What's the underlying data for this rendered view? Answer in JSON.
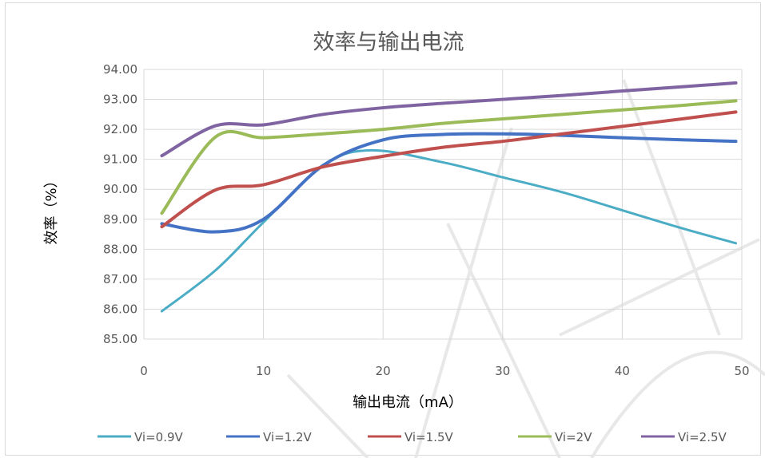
{
  "chart_data": {
    "type": "line",
    "title": "效率与输出电流",
    "xlabel": "输出电流（mA）",
    "ylabel": "效率（%）",
    "xlim": [
      0,
      50
    ],
    "ylim": [
      85,
      94
    ],
    "xticks": [
      "0",
      "10",
      "20",
      "30",
      "40",
      "50"
    ],
    "yticks": [
      "85.00",
      "86.00",
      "87.00",
      "88.00",
      "89.00",
      "90.00",
      "91.00",
      "92.00",
      "93.00",
      "94.00"
    ],
    "grid": true,
    "legend_position": "bottom",
    "series": [
      {
        "name": "Vi=0.9V",
        "color": "#4bacc6",
        "points": [
          [
            1.5,
            85.93
          ],
          [
            6,
            87.3
          ],
          [
            10,
            88.9
          ],
          [
            15,
            90.8
          ],
          [
            19,
            91.3
          ],
          [
            25,
            90.9
          ],
          [
            30,
            90.4
          ],
          [
            35,
            89.9
          ],
          [
            40,
            89.3
          ],
          [
            45,
            88.7
          ],
          [
            49.5,
            88.2
          ]
        ]
      },
      {
        "name": "Vi=1.2V",
        "color": "#4472c4",
        "points": [
          [
            1.5,
            88.85
          ],
          [
            6,
            88.58
          ],
          [
            10,
            89.0
          ],
          [
            15,
            90.8
          ],
          [
            20,
            91.65
          ],
          [
            25,
            91.83
          ],
          [
            30,
            91.85
          ],
          [
            35,
            91.8
          ],
          [
            40,
            91.72
          ],
          [
            45,
            91.65
          ],
          [
            49.5,
            91.6
          ]
        ]
      },
      {
        "name": "Vi=1.5V",
        "color": "#c0504d",
        "points": [
          [
            1.5,
            88.75
          ],
          [
            6,
            89.98
          ],
          [
            10,
            90.15
          ],
          [
            15,
            90.75
          ],
          [
            20,
            91.1
          ],
          [
            25,
            91.4
          ],
          [
            30,
            91.6
          ],
          [
            35,
            91.85
          ],
          [
            40,
            92.1
          ],
          [
            45,
            92.35
          ],
          [
            49.5,
            92.58
          ]
        ]
      },
      {
        "name": "Vi=2V",
        "color": "#9bbb59",
        "points": [
          [
            1.5,
            89.2
          ],
          [
            6,
            91.75
          ],
          [
            10,
            91.72
          ],
          [
            15,
            91.85
          ],
          [
            20,
            92.0
          ],
          [
            25,
            92.2
          ],
          [
            30,
            92.35
          ],
          [
            35,
            92.5
          ],
          [
            40,
            92.65
          ],
          [
            45,
            92.8
          ],
          [
            49.5,
            92.95
          ]
        ]
      },
      {
        "name": "Vi=2.5V",
        "color": "#8064a2",
        "points": [
          [
            1.5,
            91.12
          ],
          [
            6,
            92.12
          ],
          [
            10,
            92.15
          ],
          [
            15,
            92.5
          ],
          [
            20,
            92.72
          ],
          [
            25,
            92.87
          ],
          [
            30,
            93.0
          ],
          [
            35,
            93.13
          ],
          [
            40,
            93.28
          ],
          [
            45,
            93.42
          ],
          [
            49.5,
            93.55
          ]
        ]
      }
    ]
  }
}
